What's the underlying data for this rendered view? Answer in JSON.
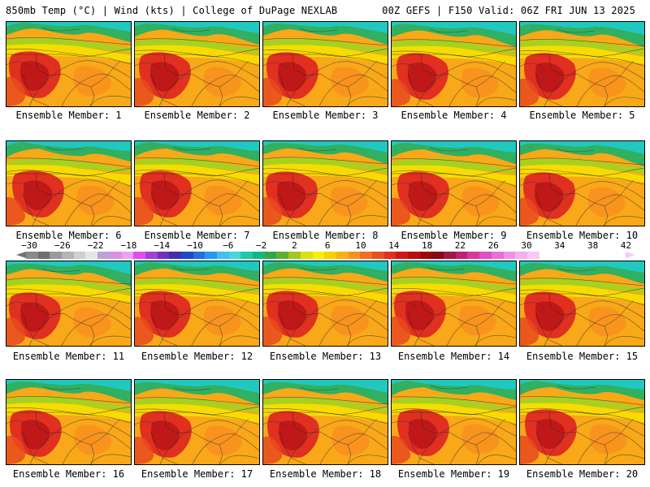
{
  "header": {
    "left_title": "850mb Temp (°C) | Wind (kts) | College of DuPage NEXLAB",
    "right_title": "00Z GEFS | F150 Valid: 06Z FRI JUN 13 2025"
  },
  "members": [
    {
      "label": "Ensemble Member: 1"
    },
    {
      "label": "Ensemble Member: 2"
    },
    {
      "label": "Ensemble Member: 3"
    },
    {
      "label": "Ensemble Member: 4"
    },
    {
      "label": "Ensemble Member: 5"
    },
    {
      "label": "Ensemble Member: 6"
    },
    {
      "label": "Ensemble Member: 7"
    },
    {
      "label": "Ensemble Member: 8"
    },
    {
      "label": "Ensemble Member: 9"
    },
    {
      "label": "Ensemble Member: 10"
    },
    {
      "label": "Ensemble Member: 11"
    },
    {
      "label": "Ensemble Member: 12"
    },
    {
      "label": "Ensemble Member: 13"
    },
    {
      "label": "Ensemble Member: 14"
    },
    {
      "label": "Ensemble Member: 15"
    },
    {
      "label": "Ensemble Member: 16"
    },
    {
      "label": "Ensemble Member: 17"
    },
    {
      "label": "Ensemble Member: 18"
    },
    {
      "label": "Ensemble Member: 19"
    },
    {
      "label": "Ensemble Member: 20"
    }
  ],
  "colorbar": {
    "labels": [
      "−30",
      "−26",
      "−22",
      "−18",
      "−14",
      "−10",
      "−6",
      "−2",
      "2",
      "6",
      "10",
      "14",
      "18",
      "22",
      "26",
      "30",
      "34",
      "38",
      "42"
    ],
    "colors": [
      "#8a8a8a",
      "#707070",
      "#9a9a9a",
      "#b4b4b4",
      "#cfcfcf",
      "#e6e6e6",
      "#b8a4d8",
      "#d890e8",
      "#f0a0f0",
      "#e050e8",
      "#a040d8",
      "#7030c0",
      "#4030b0",
      "#2048c8",
      "#2070e0",
      "#2898f0",
      "#40c0f0",
      "#40d8d8",
      "#20c8a8",
      "#10b880",
      "#30a848",
      "#60b030",
      "#a0c820",
      "#d8e010",
      "#f8f000",
      "#f8d000",
      "#f8b010",
      "#f89020",
      "#f07020",
      "#e85020",
      "#e03020",
      "#d01818",
      "#b81010",
      "#a00808",
      "#880818",
      "#a01848",
      "#c02070",
      "#d83898",
      "#e050c0",
      "#e870d8",
      "#f090e8",
      "#f4b0f0",
      "#f8c8f8"
    ]
  }
}
